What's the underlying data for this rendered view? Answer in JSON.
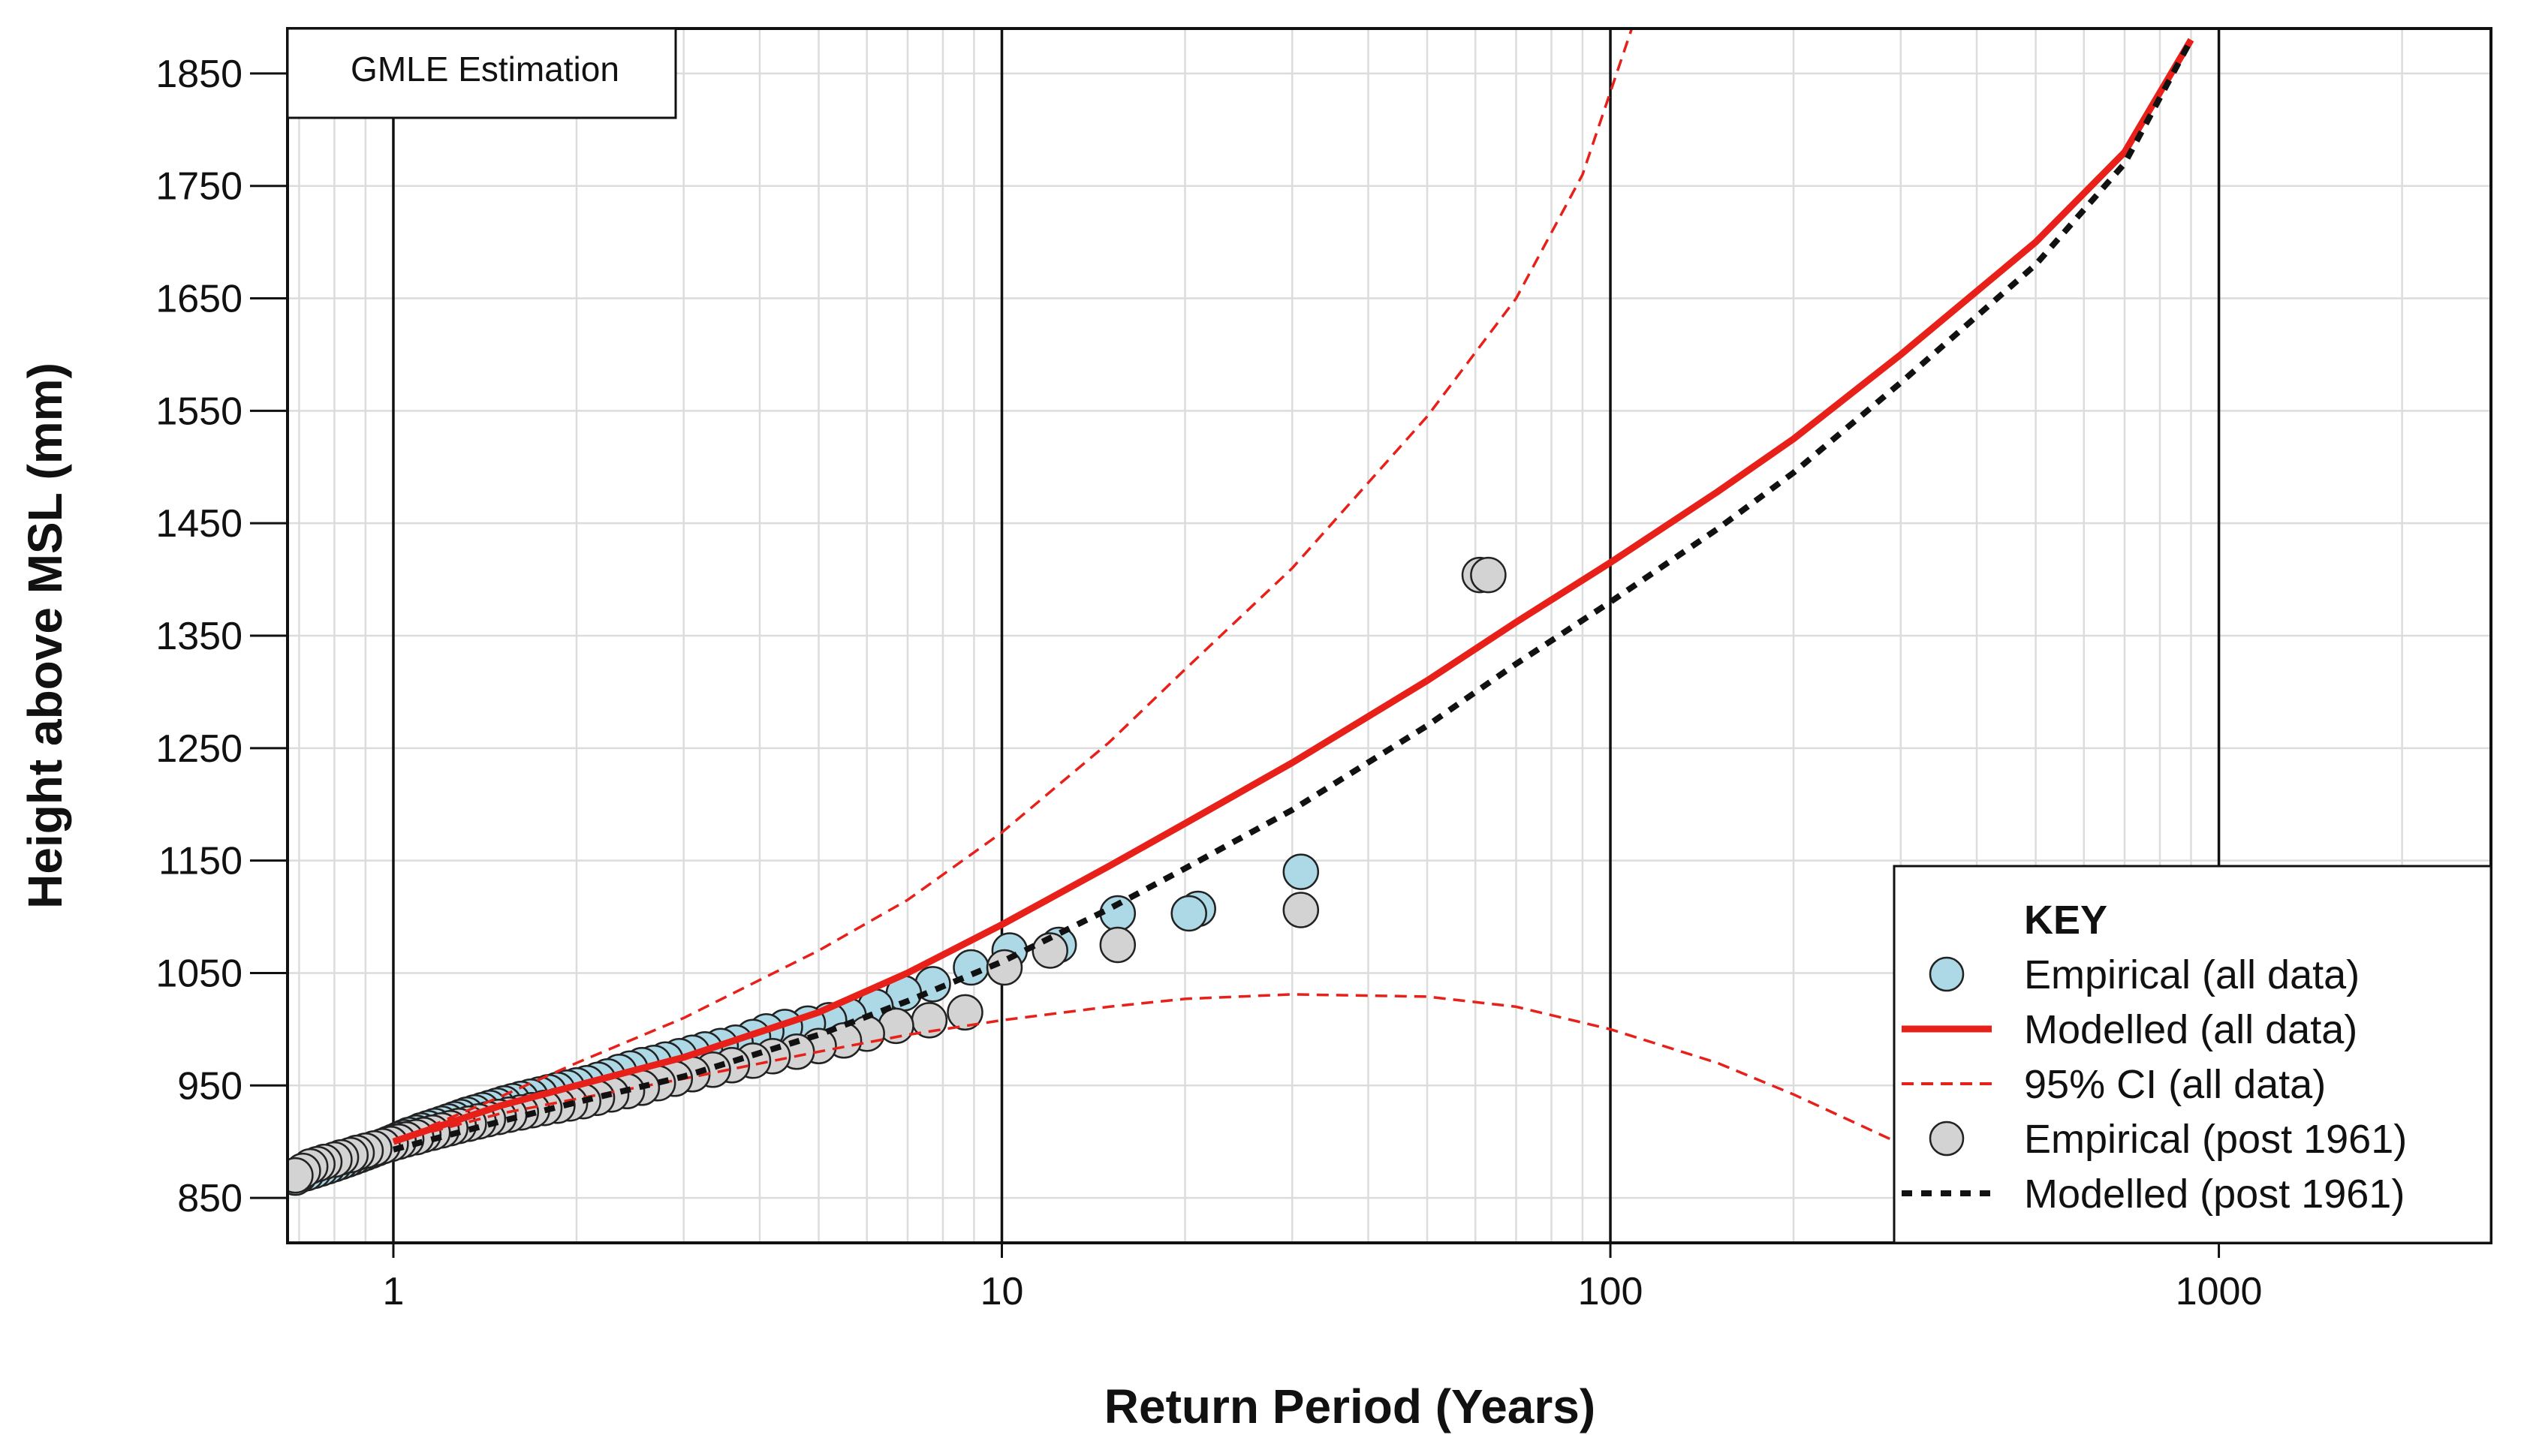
{
  "chart_data": {
    "type": "scatter",
    "annotation": "GMLE Estimation",
    "xlabel": "Return Period (Years)",
    "ylabel": "Height above MSL (mm)",
    "x_scale": "log",
    "xlim": [
      0.67,
      2800
    ],
    "ylim": [
      810,
      1890
    ],
    "x_ticks": [
      "1",
      "10",
      "100",
      "1000"
    ],
    "y_ticks": [
      "850",
      "950",
      "1050",
      "1150",
      "1250",
      "1350",
      "1450",
      "1550",
      "1650",
      "1750",
      "1850"
    ],
    "grid": true,
    "legend_position": "bottom-right",
    "legend": {
      "title": "KEY",
      "entries": [
        "Empirical (all data)",
        "Modelled (all data)",
        "95% CI (all data)",
        "Empirical (post 1961)",
        "Modelled (post 1961)"
      ]
    },
    "colors": {
      "empirical_all": "#add8e6",
      "empirical_post": "#d3d3d3",
      "modelled_all": "#e8201a",
      "ci": "#e8201a",
      "modelled_post": "#111111"
    },
    "series": [
      {
        "name": "Empirical (all data)",
        "kind": "points",
        "x": [
          31.0,
          21.0,
          20.3,
          15.5,
          12.4,
          10.3,
          8.9,
          7.7,
          6.9,
          6.2,
          5.6,
          5.2,
          4.8,
          4.4,
          4.1,
          3.9,
          3.65,
          3.45,
          3.25,
          3.1,
          2.95,
          2.8,
          2.68,
          2.56,
          2.45,
          2.35,
          2.25,
          2.17,
          2.08,
          2.0,
          1.93,
          1.86,
          1.8,
          1.74,
          1.68,
          1.62,
          1.57,
          1.52,
          1.48,
          1.44,
          1.4,
          1.36,
          1.32,
          1.29,
          1.26,
          1.23,
          1.2,
          1.17,
          1.14,
          1.11,
          1.09,
          1.06,
          1.04,
          1.02,
          1.0,
          0.98,
          0.96,
          0.94,
          0.92,
          0.9,
          0.88,
          0.86,
          0.84,
          0.82,
          0.8,
          0.78,
          0.76,
          0.74,
          0.72,
          0.7,
          0.69
        ],
        "y": [
          1140,
          1107,
          1103,
          1103,
          1075,
          1070,
          1055,
          1040,
          1032,
          1020,
          1012,
          1008,
          1005,
          1002,
          998,
          993,
          988,
          985,
          982,
          979,
          976,
          973,
          970,
          968,
          965,
          962,
          958,
          955,
          952,
          950,
          948,
          946,
          944,
          942,
          940,
          938,
          936,
          934,
          932,
          930,
          928,
          926,
          924,
          922,
          920,
          918,
          916,
          914,
          912,
          910,
          908,
          906,
          904,
          902,
          900,
          898,
          896,
          894,
          892,
          890,
          888,
          886,
          884,
          882,
          880,
          878,
          876,
          874,
          872,
          870,
          868
        ]
      },
      {
        "name": "Empirical (post 1961)",
        "kind": "points",
        "x": [
          61.0,
          63.0,
          31.0,
          15.5,
          12.0,
          10.1,
          8.7,
          7.6,
          6.7,
          6.0,
          5.5,
          5.0,
          4.6,
          4.2,
          3.9,
          3.6,
          3.35,
          3.1,
          2.9,
          2.72,
          2.56,
          2.42,
          2.28,
          2.16,
          2.05,
          1.95,
          1.86,
          1.77,
          1.69,
          1.62,
          1.55,
          1.49,
          1.43,
          1.38,
          1.33,
          1.28,
          1.24,
          1.2,
          1.16,
          1.12,
          1.09,
          1.05,
          1.02,
          0.99,
          0.96,
          0.93,
          0.9,
          0.87,
          0.85,
          0.82,
          0.8,
          0.77,
          0.75,
          0.73,
          0.71,
          0.69
        ],
        "y": [
          1404,
          1404,
          1106,
          1075,
          1070,
          1055,
          1015,
          1008,
          1003,
          996,
          990,
          985,
          980,
          976,
          972,
          968,
          964,
          960,
          956,
          952,
          948,
          945,
          942,
          939,
          936,
          934,
          932,
          930,
          928,
          926,
          924,
          922,
          920,
          918,
          916,
          914,
          912,
          910,
          908,
          906,
          904,
          902,
          900,
          898,
          896,
          894,
          892,
          890,
          888,
          886,
          884,
          882,
          880,
          878,
          874,
          870
        ]
      },
      {
        "name": "Modelled (all data)",
        "kind": "line",
        "x": [
          1,
          1.5,
          2,
          3,
          5,
          7,
          10,
          15,
          20,
          30,
          50,
          70,
          100,
          150,
          200,
          300,
          500,
          700,
          900
        ],
        "y": [
          900,
          932,
          950,
          975,
          1015,
          1050,
          1093,
          1145,
          1183,
          1237,
          1310,
          1362,
          1415,
          1478,
          1525,
          1600,
          1700,
          1780,
          1880
        ]
      },
      {
        "name": "95% CI (all data) upper",
        "kind": "dashed",
        "x": [
          1,
          1.5,
          2,
          3,
          5,
          7,
          10,
          15,
          20,
          30,
          50,
          70,
          90,
          110
        ],
        "y": [
          900,
          940,
          970,
          1010,
          1070,
          1115,
          1175,
          1255,
          1320,
          1410,
          1545,
          1650,
          1760,
          1900
        ]
      },
      {
        "name": "95% CI (all data) lower",
        "kind": "dashed",
        "x": [
          1,
          1.5,
          2,
          3,
          5,
          7,
          10,
          15,
          20,
          30,
          50,
          70,
          100,
          150,
          200,
          300
        ],
        "y": [
          900,
          925,
          938,
          956,
          980,
          995,
          1008,
          1020,
          1027,
          1031,
          1029,
          1020,
          1000,
          970,
          942,
          898
        ]
      },
      {
        "name": "Modelled (post 1961)",
        "kind": "dotted",
        "x": [
          1,
          1.5,
          2,
          3,
          5,
          7,
          10,
          15,
          20,
          30,
          50,
          70,
          100,
          150,
          200,
          300,
          500,
          700,
          900
        ],
        "y": [
          893,
          918,
          935,
          958,
          995,
          1025,
          1060,
          1107,
          1143,
          1195,
          1270,
          1325,
          1380,
          1445,
          1495,
          1575,
          1680,
          1770,
          1880
        ]
      }
    ]
  }
}
